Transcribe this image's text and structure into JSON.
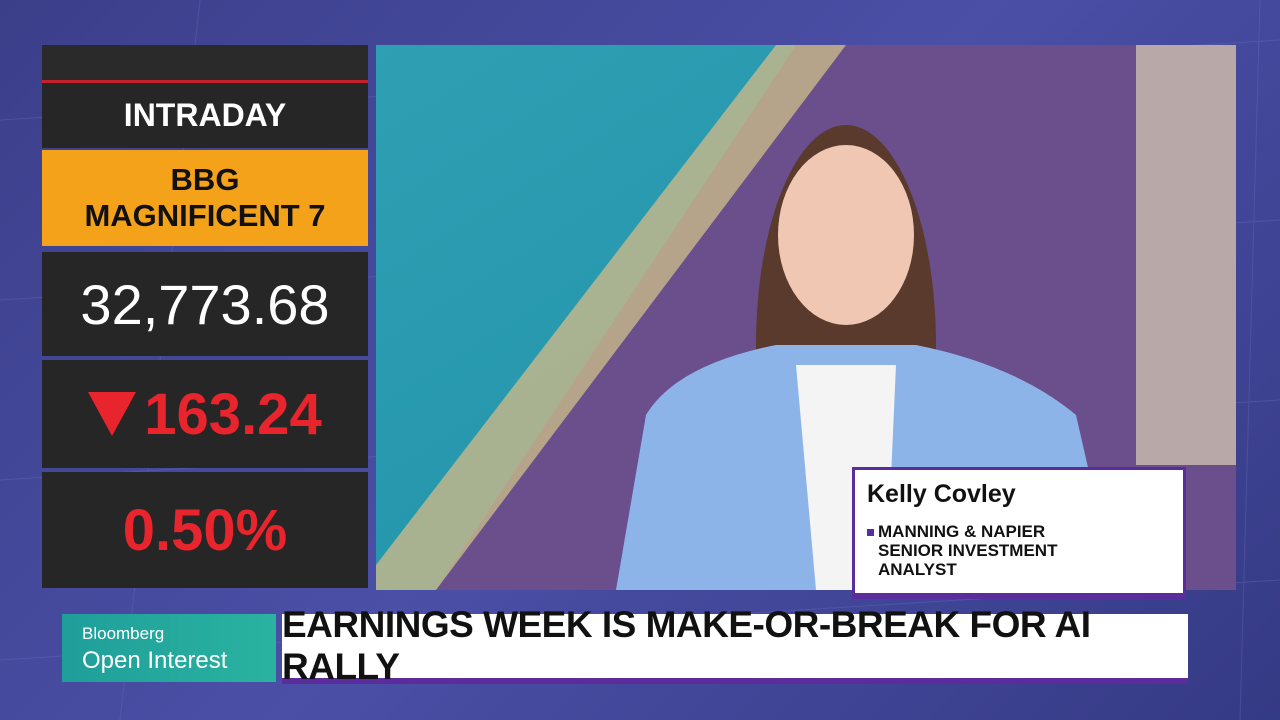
{
  "ticker": {
    "label": "INTRADAY",
    "index_name": [
      "BBG",
      "MAGNIFICENT 7"
    ],
    "price": "32,773.68",
    "change": "163.24",
    "change_percent": "0.50%"
  },
  "lower_third": {
    "name": "Kelly Covley",
    "title_lines": [
      "MANNING & NAPIER",
      "SENIOR INVESTMENT",
      "ANALYST"
    ]
  },
  "branding": {
    "network": "Bloomberg",
    "show": "Open Interest"
  },
  "headline": "EARNINGS WEEK IS MAKE-OR-BREAK FOR AI RALLY"
}
